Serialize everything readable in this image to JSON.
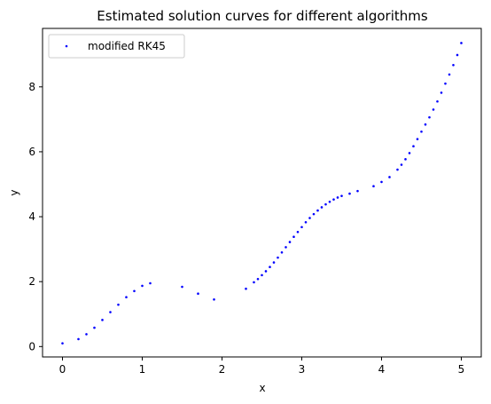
{
  "chart_data": {
    "type": "scatter",
    "title": "Estimated solution curves for different algorithms",
    "xlabel": "x",
    "ylabel": "y",
    "xlim": [
      -0.25,
      5.25
    ],
    "ylim": [
      -0.32,
      9.8
    ],
    "xticks": [
      0,
      1,
      2,
      3,
      4,
      5
    ],
    "yticks": [
      0,
      2,
      4,
      6,
      8
    ],
    "grid": false,
    "legend_position": "top-left",
    "series": [
      {
        "name": "modified RK45",
        "color": "#0000ff",
        "marker": "point",
        "points": [
          [
            0.0,
            0.1
          ],
          [
            0.2,
            0.23
          ],
          [
            0.3,
            0.38
          ],
          [
            0.4,
            0.58
          ],
          [
            0.5,
            0.82
          ],
          [
            0.6,
            1.06
          ],
          [
            0.7,
            1.29
          ],
          [
            0.8,
            1.52
          ],
          [
            0.9,
            1.71
          ],
          [
            1.0,
            1.87
          ],
          [
            1.1,
            1.95
          ],
          [
            1.5,
            1.84
          ],
          [
            1.7,
            1.63
          ],
          [
            1.9,
            1.45
          ],
          [
            2.3,
            1.78
          ],
          [
            2.4,
            1.98
          ],
          [
            2.45,
            2.08
          ],
          [
            2.5,
            2.2
          ],
          [
            2.55,
            2.32
          ],
          [
            2.6,
            2.45
          ],
          [
            2.65,
            2.59
          ],
          [
            2.7,
            2.74
          ],
          [
            2.75,
            2.9
          ],
          [
            2.8,
            3.06
          ],
          [
            2.85,
            3.22
          ],
          [
            2.9,
            3.38
          ],
          [
            2.95,
            3.53
          ],
          [
            3.0,
            3.68
          ],
          [
            3.05,
            3.83
          ],
          [
            3.1,
            3.96
          ],
          [
            3.15,
            4.08
          ],
          [
            3.2,
            4.19
          ],
          [
            3.25,
            4.29
          ],
          [
            3.3,
            4.38
          ],
          [
            3.35,
            4.46
          ],
          [
            3.4,
            4.53
          ],
          [
            3.45,
            4.59
          ],
          [
            3.5,
            4.64
          ],
          [
            3.6,
            4.71
          ],
          [
            3.7,
            4.79
          ],
          [
            3.9,
            4.94
          ],
          [
            4.0,
            5.07
          ],
          [
            4.1,
            5.22
          ],
          [
            4.2,
            5.45
          ],
          [
            4.25,
            5.6
          ],
          [
            4.3,
            5.77
          ],
          [
            4.35,
            5.96
          ],
          [
            4.4,
            6.17
          ],
          [
            4.45,
            6.39
          ],
          [
            4.5,
            6.62
          ],
          [
            4.55,
            6.84
          ],
          [
            4.6,
            7.06
          ],
          [
            4.65,
            7.3
          ],
          [
            4.7,
            7.55
          ],
          [
            4.75,
            7.82
          ],
          [
            4.8,
            8.1
          ],
          [
            4.85,
            8.38
          ],
          [
            4.9,
            8.67
          ],
          [
            4.95,
            8.98
          ],
          [
            5.0,
            9.35
          ]
        ]
      }
    ]
  }
}
